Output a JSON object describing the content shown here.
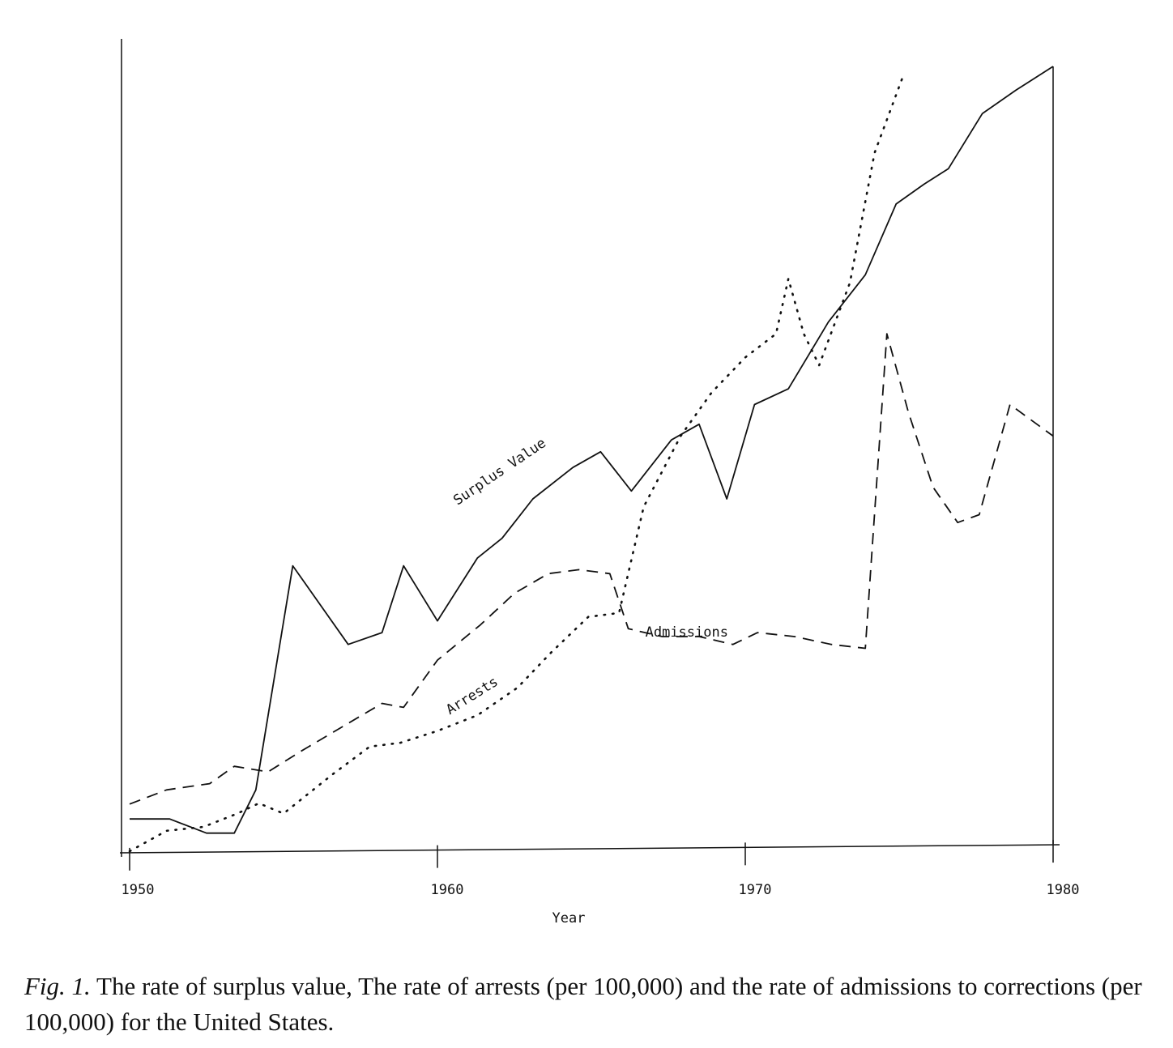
{
  "caption": {
    "prefix": "Fig. 1.",
    "text": "The rate of surplus value, The rate of arrests (per 100,000) and the rate of admissions to corrections (per 100,000) for the United States."
  },
  "chart_data": {
    "type": "line",
    "title": "",
    "xlabel": "Year",
    "ylabel": "",
    "xlim": [
      1950,
      1980
    ],
    "ylim": [
      0,
      100
    ],
    "xticks": [
      1950,
      1960,
      1970,
      1980
    ],
    "grid": false,
    "legend": "none",
    "series": [
      {
        "name": "Surplus Value",
        "style": "solid",
        "points": [
          [
            1950,
            4.3
          ],
          [
            1951.3,
            4.3
          ],
          [
            1952.5,
            2.5
          ],
          [
            1953.4,
            2.5
          ],
          [
            1954.1,
            8.0
          ],
          [
            1955.3,
            36.5
          ],
          [
            1957.1,
            26.5
          ],
          [
            1958.2,
            28.0
          ],
          [
            1958.9,
            36.5
          ],
          [
            1960,
            29.5
          ],
          [
            1961.3,
            37.5
          ],
          [
            1962.1,
            40.0
          ],
          [
            1963.1,
            45.0
          ],
          [
            1964.4,
            49.0
          ],
          [
            1965.3,
            51.0
          ],
          [
            1966.3,
            46.0
          ],
          [
            1967.6,
            52.5
          ],
          [
            1968.5,
            54.5
          ],
          [
            1969.4,
            45.0
          ],
          [
            1970.3,
            57.0
          ],
          [
            1971.4,
            59.0
          ],
          [
            1972.7,
            67.5
          ],
          [
            1973.9,
            73.5
          ],
          [
            1974.9,
            82.5
          ],
          [
            1975.8,
            85.0
          ],
          [
            1976.6,
            87.0
          ],
          [
            1977.7,
            94.0
          ],
          [
            1978.8,
            97.0
          ],
          [
            1980,
            100.0
          ]
        ]
      },
      {
        "name": "Admissions",
        "style": "dashed",
        "points": [
          [
            1950,
            6.2
          ],
          [
            1951.2,
            8.0
          ],
          [
            1952.6,
            8.8
          ],
          [
            1953.4,
            11.0
          ],
          [
            1954.5,
            10.3
          ],
          [
            1955.6,
            13.0
          ],
          [
            1956.9,
            16.0
          ],
          [
            1958.2,
            19.0
          ],
          [
            1958.9,
            18.5
          ],
          [
            1960,
            24.5
          ],
          [
            1961.4,
            29.0
          ],
          [
            1962.5,
            33.0
          ],
          [
            1963.6,
            35.5
          ],
          [
            1964.6,
            36.0
          ],
          [
            1965.6,
            35.5
          ],
          [
            1966.2,
            28.5
          ],
          [
            1967.3,
            27.5
          ],
          [
            1968.5,
            27.5
          ],
          [
            1969.6,
            26.5
          ],
          [
            1970.4,
            28.0
          ],
          [
            1971.6,
            27.5
          ],
          [
            1972.8,
            26.5
          ],
          [
            1973.9,
            26.0
          ],
          [
            1974.6,
            66.0
          ],
          [
            1975.3,
            56.0
          ],
          [
            1976.1,
            46.5
          ],
          [
            1976.9,
            42.0
          ],
          [
            1977.6,
            43.0
          ],
          [
            1978.6,
            57.0
          ],
          [
            1980,
            53.0
          ]
        ]
      },
      {
        "name": "Arrests",
        "style": "dotted",
        "points": [
          [
            1950,
            0.2
          ],
          [
            1951.2,
            2.8
          ],
          [
            1952.4,
            3.3
          ],
          [
            1953.5,
            5.0
          ],
          [
            1954.2,
            6.3
          ],
          [
            1955.0,
            5.0
          ],
          [
            1956.6,
            10.0
          ],
          [
            1957.8,
            13.5
          ],
          [
            1958.8,
            14.0
          ],
          [
            1960,
            15.5
          ],
          [
            1961.3,
            17.5
          ],
          [
            1962.6,
            21.0
          ],
          [
            1963.7,
            25.5
          ],
          [
            1964.9,
            30.0
          ],
          [
            1965.9,
            30.5
          ],
          [
            1966.7,
            44.0
          ],
          [
            1967.9,
            53.0
          ],
          [
            1968.9,
            58.5
          ],
          [
            1970.0,
            63.0
          ],
          [
            1971.0,
            66.0
          ],
          [
            1971.4,
            73.0
          ],
          [
            1971.9,
            66.0
          ],
          [
            1972.4,
            62.0
          ],
          [
            1973.4,
            72.5
          ],
          [
            1974.2,
            89.0
          ],
          [
            1975.1,
            98.5
          ]
        ]
      }
    ],
    "annotations": [
      {
        "text": "Surplus Value",
        "x": 1962.1,
        "y": 48.0,
        "rotation": -34
      },
      {
        "text": "Admissions",
        "x": 1968.1,
        "y": 27.5,
        "rotation": 0
      },
      {
        "text": "Arrests",
        "x": 1961.2,
        "y": 19.5,
        "rotation": -32
      }
    ]
  }
}
